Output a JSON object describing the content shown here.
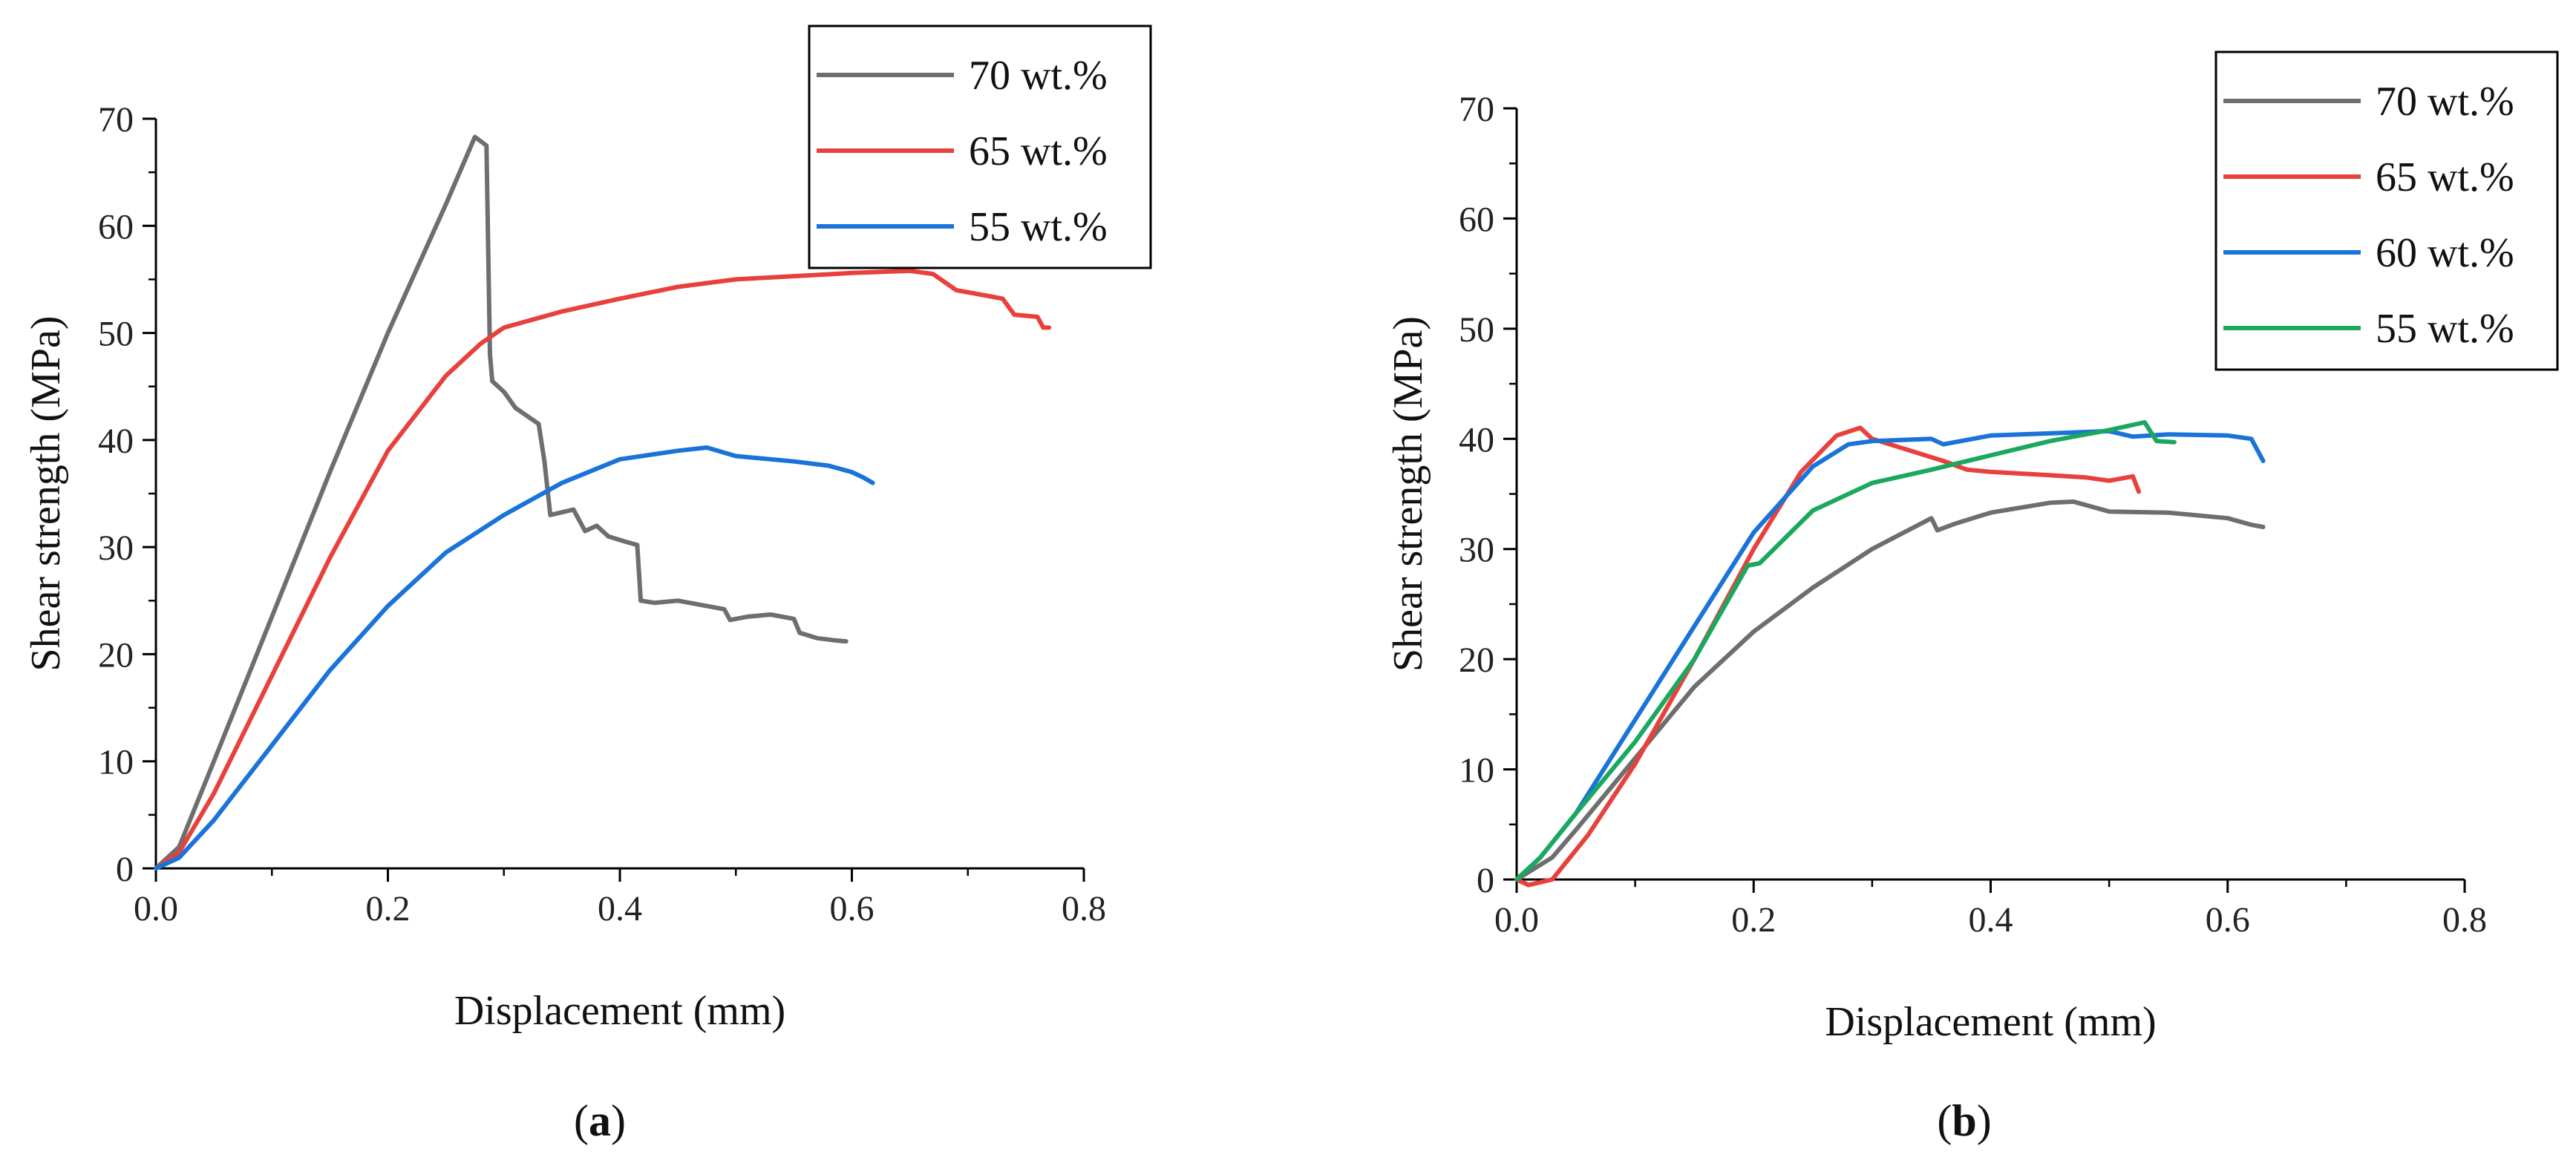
{
  "figure": {
    "panel_captions": [
      {
        "open": "(",
        "letter": "a",
        "close": ")"
      },
      {
        "open": "(",
        "letter": "b",
        "close": ")"
      }
    ]
  },
  "chart_data": [
    {
      "type": "line",
      "panel": "a",
      "title": "",
      "xlabel": "Displacement (mm)",
      "ylabel": "Shear strength (MPa)",
      "xlim": [
        0,
        0.8
      ],
      "ylim": [
        0,
        70
      ],
      "xticks": [
        0.0,
        0.2,
        0.4,
        0.6,
        0.8
      ],
      "xtick_labels": [
        "0.0",
        "0.2",
        "0.4",
        "0.6",
        "0.8"
      ],
      "yticks": [
        0,
        10,
        20,
        30,
        40,
        50,
        60,
        70
      ],
      "ytick_labels": [
        "0",
        "10",
        "20",
        "30",
        "40",
        "50",
        "60",
        "70"
      ],
      "legend_position": "top-right",
      "series": [
        {
          "name": "70 wt.%",
          "color": "#6e6e6e",
          "points": [
            [
              0,
              0
            ],
            [
              0.02,
              2
            ],
            [
              0.05,
              10
            ],
            [
              0.1,
              23.5
            ],
            [
              0.15,
              37
            ],
            [
              0.2,
              50
            ],
            [
              0.25,
              62
            ],
            [
              0.275,
              68.3
            ],
            [
              0.285,
              67.5
            ],
            [
              0.288,
              48
            ],
            [
              0.29,
              45.5
            ],
            [
              0.3,
              44.5
            ],
            [
              0.31,
              43
            ],
            [
              0.33,
              41.5
            ],
            [
              0.335,
              38
            ],
            [
              0.34,
              33
            ],
            [
              0.36,
              33.5
            ],
            [
              0.37,
              31.5
            ],
            [
              0.38,
              32
            ],
            [
              0.39,
              31
            ],
            [
              0.405,
              30.5
            ],
            [
              0.415,
              30.2
            ],
            [
              0.418,
              25
            ],
            [
              0.43,
              24.8
            ],
            [
              0.45,
              25
            ],
            [
              0.47,
              24.6
            ],
            [
              0.49,
              24.2
            ],
            [
              0.495,
              23.2
            ],
            [
              0.51,
              23.5
            ],
            [
              0.53,
              23.7
            ],
            [
              0.55,
              23.3
            ],
            [
              0.555,
              22
            ],
            [
              0.57,
              21.5
            ],
            [
              0.585,
              21.3
            ],
            [
              0.595,
              21.2
            ]
          ]
        },
        {
          "name": "65 wt.%",
          "color": "#e8413d",
          "points": [
            [
              0,
              0
            ],
            [
              0.02,
              1.5
            ],
            [
              0.05,
              7
            ],
            [
              0.1,
              18
            ],
            [
              0.15,
              29
            ],
            [
              0.2,
              39
            ],
            [
              0.25,
              46
            ],
            [
              0.28,
              49
            ],
            [
              0.3,
              50.5
            ],
            [
              0.35,
              52
            ],
            [
              0.4,
              53.2
            ],
            [
              0.45,
              54.3
            ],
            [
              0.5,
              55
            ],
            [
              0.55,
              55.3
            ],
            [
              0.6,
              55.6
            ],
            [
              0.65,
              55.8
            ],
            [
              0.67,
              55.5
            ],
            [
              0.69,
              54
            ],
            [
              0.72,
              53.4
            ],
            [
              0.73,
              53.2
            ],
            [
              0.74,
              51.7
            ],
            [
              0.76,
              51.5
            ],
            [
              0.765,
              50.5
            ],
            [
              0.77,
              50.5
            ]
          ]
        },
        {
          "name": "55 wt.%",
          "color": "#1a73d9",
          "points": [
            [
              0,
              0
            ],
            [
              0.02,
              1
            ],
            [
              0.05,
              4.5
            ],
            [
              0.1,
              11.5
            ],
            [
              0.15,
              18.5
            ],
            [
              0.2,
              24.5
            ],
            [
              0.25,
              29.5
            ],
            [
              0.3,
              33
            ],
            [
              0.35,
              36
            ],
            [
              0.4,
              38.2
            ],
            [
              0.45,
              39
            ],
            [
              0.475,
              39.3
            ],
            [
              0.5,
              38.5
            ],
            [
              0.55,
              38
            ],
            [
              0.58,
              37.6
            ],
            [
              0.6,
              37
            ],
            [
              0.61,
              36.5
            ],
            [
              0.618,
              36
            ]
          ]
        }
      ]
    },
    {
      "type": "line",
      "panel": "b",
      "title": "",
      "xlabel": "Displacement (mm)",
      "ylabel": "Shear strength (MPa)",
      "xlim": [
        0,
        0.8
      ],
      "ylim": [
        0,
        70
      ],
      "xticks": [
        0.0,
        0.2,
        0.4,
        0.6,
        0.8
      ],
      "xtick_labels": [
        "0.0",
        "0.2",
        "0.4",
        "0.6",
        "0.8"
      ],
      "yticks": [
        0,
        10,
        20,
        30,
        40,
        50,
        60,
        70
      ],
      "ytick_labels": [
        "0",
        "10",
        "20",
        "30",
        "40",
        "50",
        "60",
        "70"
      ],
      "legend_position": "top-right",
      "series": [
        {
          "name": "70 wt.%",
          "color": "#6e6e6e",
          "points": [
            [
              0,
              0
            ],
            [
              0.03,
              2
            ],
            [
              0.05,
              4.5
            ],
            [
              0.1,
              11
            ],
            [
              0.15,
              17.5
            ],
            [
              0.2,
              22.5
            ],
            [
              0.25,
              26.5
            ],
            [
              0.3,
              30
            ],
            [
              0.35,
              32.8
            ],
            [
              0.355,
              31.7
            ],
            [
              0.37,
              32.3
            ],
            [
              0.4,
              33.3
            ],
            [
              0.45,
              34.2
            ],
            [
              0.47,
              34.3
            ],
            [
              0.5,
              33.4
            ],
            [
              0.55,
              33.3
            ],
            [
              0.6,
              32.8
            ],
            [
              0.62,
              32.2
            ],
            [
              0.63,
              32
            ]
          ]
        },
        {
          "name": "65 wt.%",
          "color": "#e8413d",
          "points": [
            [
              0,
              0
            ],
            [
              0.01,
              -0.5
            ],
            [
              0.03,
              0
            ],
            [
              0.06,
              4
            ],
            [
              0.1,
              10.5
            ],
            [
              0.15,
              20
            ],
            [
              0.2,
              30
            ],
            [
              0.24,
              37
            ],
            [
              0.27,
              40.3
            ],
            [
              0.29,
              41
            ],
            [
              0.3,
              40
            ],
            [
              0.33,
              39
            ],
            [
              0.36,
              38
            ],
            [
              0.38,
              37.2
            ],
            [
              0.4,
              37
            ],
            [
              0.45,
              36.7
            ],
            [
              0.48,
              36.5
            ],
            [
              0.5,
              36.2
            ],
            [
              0.52,
              36.6
            ],
            [
              0.525,
              35.2
            ]
          ]
        },
        {
          "name": "60 wt.%",
          "color": "#1a73d9",
          "points": [
            [
              0,
              0
            ],
            [
              0.02,
              2
            ],
            [
              0.05,
              6
            ],
            [
              0.1,
              14.5
            ],
            [
              0.15,
              23
            ],
            [
              0.2,
              31.5
            ],
            [
              0.25,
              37.5
            ],
            [
              0.28,
              39.5
            ],
            [
              0.3,
              39.8
            ],
            [
              0.35,
              40
            ],
            [
              0.36,
              39.5
            ],
            [
              0.4,
              40.3
            ],
            [
              0.45,
              40.5
            ],
            [
              0.5,
              40.7
            ],
            [
              0.52,
              40.2
            ],
            [
              0.55,
              40.4
            ],
            [
              0.6,
              40.3
            ],
            [
              0.62,
              40
            ],
            [
              0.63,
              38
            ]
          ]
        },
        {
          "name": "55 wt.%",
          "color": "#1aa85f",
          "points": [
            [
              0,
              0
            ],
            [
              0.02,
              2
            ],
            [
              0.05,
              6
            ],
            [
              0.1,
              12.5
            ],
            [
              0.15,
              20
            ],
            [
              0.195,
              28.5
            ],
            [
              0.205,
              28.7
            ],
            [
              0.25,
              33.5
            ],
            [
              0.3,
              36
            ],
            [
              0.35,
              37.2
            ],
            [
              0.4,
              38.5
            ],
            [
              0.45,
              39.8
            ],
            [
              0.5,
              40.8
            ],
            [
              0.53,
              41.5
            ],
            [
              0.54,
              39.8
            ],
            [
              0.555,
              39.7
            ]
          ]
        }
      ]
    }
  ]
}
